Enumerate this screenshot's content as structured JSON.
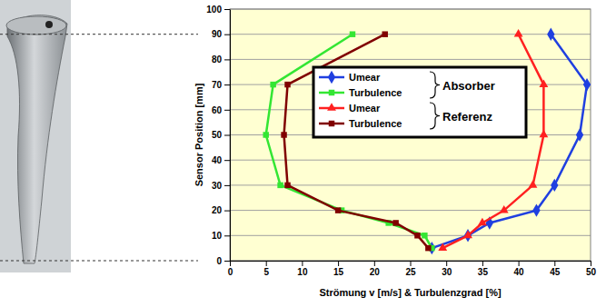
{
  "chart_data": {
    "type": "line",
    "orientation": "horizontal",
    "x_label": "Sensor Position [mm]",
    "y_label": "Strömung v [m/s] & Turbulenzgrad [%]",
    "x": [
      5,
      10,
      15,
      20,
      30,
      50,
      70,
      90
    ],
    "xlim": [
      0,
      100
    ],
    "xticks": [
      0,
      10,
      20,
      30,
      40,
      50,
      60,
      70,
      80,
      90,
      100
    ],
    "ylim": [
      0,
      50
    ],
    "yticks": [
      0,
      5,
      10,
      15,
      20,
      25,
      30,
      35,
      40,
      45,
      50
    ],
    "grid": true,
    "legend": "center",
    "annotations": [
      "Absorber",
      "Referenz"
    ],
    "series": [
      {
        "name": "Umear",
        "color": "#1f3fe0",
        "marker": "diamond",
        "values": [
          28,
          33,
          36,
          42.5,
          45,
          48.5,
          49.5,
          44.5
        ]
      },
      {
        "name": "Turbulence",
        "color": "#33e633",
        "marker": "square",
        "values": [
          28,
          27,
          22,
          15.5,
          7,
          5,
          6,
          17
        ]
      },
      {
        "name": "Umear",
        "color": "#ff2020",
        "marker": "triangle",
        "values": [
          29.5,
          33,
          35,
          38,
          42,
          43.5,
          43.5,
          40
        ]
      },
      {
        "name": "Turbulence",
        "color": "#800000",
        "marker": "square",
        "values": [
          27.5,
          26,
          23,
          15,
          8,
          7.5,
          8,
          21.5
        ]
      }
    ]
  }
}
